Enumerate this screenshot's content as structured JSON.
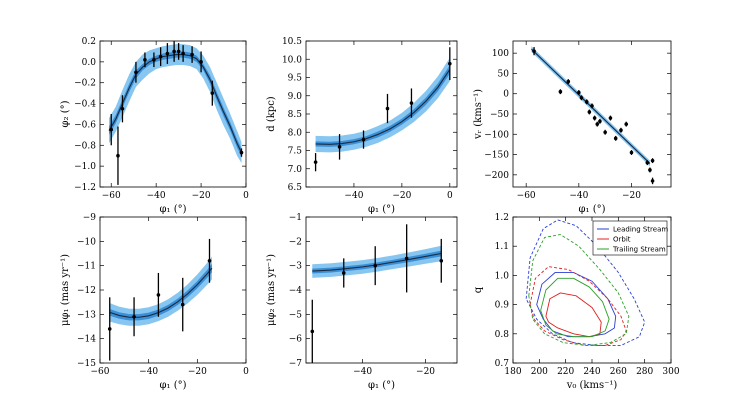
{
  "colors": {
    "band_outer": "#87c6f0",
    "band_inner": "#3a8fd6",
    "curve": "#1a2a40",
    "points": "#000000",
    "leading": "#2a3fd6",
    "orbit": "#e02020",
    "trailing": "#2aa02a"
  },
  "chart_data": [
    {
      "id": "phi2",
      "type": "line",
      "xlabel": "φ₁ (°)",
      "ylabel": "φ₂ (°)",
      "xlim": [
        -65,
        0
      ],
      "ylim": [
        -1.2,
        0.2
      ],
      "xticks": [
        -60,
        -40,
        -20,
        0
      ],
      "xtick_labels": [
        "−60",
        "−40",
        "−20",
        "0"
      ],
      "yticks": [
        -1.2,
        -1.0,
        -0.8,
        -0.6,
        -0.4,
        -0.2,
        0.0,
        0.2
      ],
      "ytick_labels": [
        "−1.2",
        "−1.0",
        "−0.8",
        "−0.6",
        "−0.4",
        "−0.2",
        "0.0",
        "0.2"
      ],
      "model": {
        "x": [
          -61,
          -58,
          -55,
          -52,
          -49,
          -46,
          -43,
          -40,
          -37,
          -34,
          -31,
          -28,
          -25,
          -22,
          -19,
          -16,
          -13,
          -10,
          -7,
          -4,
          -2
        ],
        "y": [
          -0.66,
          -0.55,
          -0.4,
          -0.25,
          -0.12,
          -0.05,
          0.0,
          0.03,
          0.05,
          0.06,
          0.07,
          0.07,
          0.06,
          0.03,
          -0.05,
          -0.17,
          -0.33,
          -0.48,
          -0.62,
          -0.78,
          -0.87
        ],
        "inner": [
          0.04,
          0.04,
          0.04,
          0.04,
          0.04,
          0.03,
          0.03,
          0.03,
          0.03,
          0.03,
          0.03,
          0.03,
          0.03,
          0.03,
          0.03,
          0.04,
          0.04,
          0.04,
          0.04,
          0.04,
          0.04
        ],
        "outer": [
          0.12,
          0.12,
          0.13,
          0.13,
          0.12,
          0.12,
          0.11,
          0.1,
          0.1,
          0.1,
          0.1,
          0.1,
          0.1,
          0.1,
          0.11,
          0.12,
          0.13,
          0.13,
          0.12,
          0.12,
          0.1
        ]
      },
      "points": {
        "x": [
          -60,
          -57,
          -55,
          -49,
          -45,
          -41,
          -38,
          -35,
          -32,
          -30,
          -28,
          -24,
          -20,
          -15,
          -2
        ],
        "y": [
          -0.65,
          -0.9,
          -0.45,
          -0.1,
          0.02,
          0.02,
          0.05,
          0.08,
          0.1,
          0.1,
          0.08,
          0.07,
          0.0,
          -0.3,
          -0.87
        ],
        "err": [
          0.15,
          0.28,
          0.13,
          0.1,
          0.07,
          0.07,
          0.09,
          0.1,
          0.1,
          0.08,
          0.08,
          0.08,
          0.1,
          0.12,
          0.04
        ]
      }
    },
    {
      "id": "dist",
      "type": "line",
      "xlabel": "φ₁ (°)",
      "ylabel": "d (kpc)",
      "xlim": [
        -60,
        3
      ],
      "ylim": [
        6.5,
        10.5
      ],
      "xticks": [
        -40,
        -20,
        0
      ],
      "xtick_labels": [
        "−40",
        "−20",
        "0"
      ],
      "yticks": [
        6.5,
        7.0,
        7.5,
        8.0,
        8.5,
        9.0,
        9.5,
        10.0,
        10.5
      ],
      "ytick_labels": [
        "6.5",
        "7.0",
        "7.5",
        "8.0",
        "8.5",
        "9.0",
        "9.5",
        "10.0",
        "10.5"
      ],
      "model": {
        "x": [
          -56,
          -50,
          -45,
          -40,
          -35,
          -30,
          -25,
          -20,
          -15,
          -10,
          -5,
          0
        ],
        "y": [
          7.68,
          7.67,
          7.69,
          7.74,
          7.82,
          7.94,
          8.09,
          8.29,
          8.54,
          8.85,
          9.23,
          9.72
        ],
        "inner": [
          0.07,
          0.07,
          0.07,
          0.07,
          0.07,
          0.08,
          0.08,
          0.08,
          0.09,
          0.1,
          0.11,
          0.12
        ],
        "outer": [
          0.22,
          0.22,
          0.22,
          0.22,
          0.22,
          0.23,
          0.23,
          0.24,
          0.26,
          0.28,
          0.3,
          0.32
        ]
      },
      "points": {
        "x": [
          -56,
          -46,
          -36,
          -26,
          -16,
          0
        ],
        "y": [
          7.18,
          7.6,
          7.8,
          8.65,
          8.8,
          9.88
        ],
        "err": [
          0.25,
          0.35,
          0.25,
          0.4,
          0.4,
          0.45
        ]
      }
    },
    {
      "id": "vr",
      "type": "scatter",
      "xlabel": "φ₁ (°)",
      "ylabel": "vᵣ (kms⁻¹)",
      "xlim": [
        -65,
        -5
      ],
      "ylim": [
        -230,
        130
      ],
      "xticks": [
        -60,
        -40,
        -20
      ],
      "xtick_labels": [
        "−60",
        "−40",
        "−20"
      ],
      "yticks": [
        -200,
        -150,
        -100,
        -50,
        0,
        50,
        100
      ],
      "ytick_labels": [
        "−200",
        "−150",
        "−100",
        "−50",
        "0",
        "50",
        "100"
      ],
      "model": {
        "x": [
          -58,
          -13
        ],
        "y": [
          110,
          -172
        ],
        "inner": [
          2,
          2
        ],
        "outer": [
          7,
          7
        ]
      },
      "points": {
        "x": [
          -57,
          -47,
          -44,
          -40,
          -39,
          -37,
          -36,
          -35,
          -34,
          -33,
          -32,
          -30,
          -28,
          -26,
          -24,
          -22,
          -20,
          -14,
          -13,
          -12,
          -12
        ],
        "y": [
          105,
          5,
          30,
          3,
          -10,
          -20,
          -45,
          -30,
          -60,
          -75,
          -68,
          -95,
          -60,
          -110,
          -90,
          -75,
          -145,
          -170,
          -188,
          -165,
          -215
        ],
        "err": [
          10,
          6,
          6,
          6,
          6,
          6,
          6,
          6,
          6,
          6,
          6,
          6,
          6,
          6,
          6,
          6,
          6,
          6,
          6,
          6,
          8
        ]
      }
    },
    {
      "id": "mu1",
      "type": "line",
      "xlabel": "φ₁ (°)",
      "ylabel": "μφ₁ (mas yr⁻¹)",
      "xlim": [
        -60,
        0
      ],
      "ylim": [
        -15,
        -9
      ],
      "xticks": [
        -60,
        -40,
        -20,
        0
      ],
      "xtick_labels": [
        "−60",
        "−40",
        "−20",
        "0"
      ],
      "yticks": [
        -15,
        -14,
        -13,
        -12,
        -11,
        -10,
        -9
      ],
      "ytick_labels": [
        "−15",
        "−14",
        "−13",
        "−12",
        "−11",
        "−10",
        "−9"
      ],
      "model": {
        "x": [
          -56,
          -52,
          -48,
          -44,
          -40,
          -36,
          -32,
          -28,
          -24,
          -20,
          -16,
          -14
        ],
        "y": [
          -12.92,
          -13.05,
          -13.12,
          -13.12,
          -13.06,
          -12.93,
          -12.74,
          -12.48,
          -12.16,
          -11.78,
          -11.34,
          -11.1
        ],
        "inner": [
          0.14,
          0.13,
          0.13,
          0.13,
          0.13,
          0.13,
          0.13,
          0.13,
          0.14,
          0.15,
          0.16,
          0.17
        ],
        "outer": [
          0.38,
          0.36,
          0.35,
          0.35,
          0.35,
          0.35,
          0.36,
          0.37,
          0.39,
          0.42,
          0.45,
          0.47
        ]
      },
      "points": {
        "x": [
          -56,
          -46,
          -36,
          -26,
          -15
        ],
        "y": [
          -13.6,
          -13.1,
          -12.2,
          -12.6,
          -10.8
        ],
        "err": [
          1.3,
          0.8,
          0.9,
          1.1,
          0.9
        ]
      }
    },
    {
      "id": "mu2",
      "type": "line",
      "xlabel": "φ₁ (°)",
      "ylabel": "μφ₂ (mas yr⁻¹)",
      "xlim": [
        -58,
        -10
      ],
      "ylim": [
        -7,
        -1
      ],
      "xticks": [
        -40,
        -20
      ],
      "xtick_labels": [
        "−40",
        "−20"
      ],
      "yticks": [
        -7,
        -6,
        -5,
        -4,
        -3,
        -2,
        -1
      ],
      "ytick_labels": [
        "−7",
        "−6",
        "−5",
        "−4",
        "−3",
        "−2",
        "−1"
      ],
      "model": {
        "x": [
          -56,
          -50,
          -45,
          -40,
          -35,
          -30,
          -25,
          -20,
          -15
        ],
        "y": [
          -3.22,
          -3.18,
          -3.12,
          -3.05,
          -2.96,
          -2.85,
          -2.74,
          -2.62,
          -2.5
        ],
        "inner": [
          0.1,
          0.1,
          0.1,
          0.1,
          0.1,
          0.1,
          0.11,
          0.11,
          0.12
        ],
        "outer": [
          0.28,
          0.28,
          0.28,
          0.28,
          0.28,
          0.28,
          0.29,
          0.3,
          0.32
        ]
      },
      "points": {
        "x": [
          -56,
          -46,
          -36,
          -26,
          -15
        ],
        "y": [
          -5.7,
          -3.3,
          -3.0,
          -2.7,
          -2.8
        ],
        "err": [
          1.3,
          0.6,
          0.8,
          1.4,
          0.9
        ]
      }
    },
    {
      "id": "contour",
      "type": "line",
      "xlabel": "v₀ (kms⁻¹)",
      "ylabel": "q",
      "xlim": [
        180,
        300
      ],
      "ylim": [
        0.7,
        1.2
      ],
      "xticks": [
        180,
        200,
        220,
        240,
        260,
        280,
        300
      ],
      "xtick_labels": [
        "180",
        "200",
        "220",
        "240",
        "260",
        "280",
        "300"
      ],
      "yticks": [
        0.7,
        0.8,
        0.9,
        1.0,
        1.1,
        1.2
      ],
      "ytick_labels": [
        "0.7",
        "0.8",
        "0.9",
        "1.0",
        "1.1",
        "1.2"
      ],
      "legend": [
        "Leading Stream",
        "Orbit",
        "Trailing Stream"
      ],
      "legend_position": "top-right",
      "contours": [
        {
          "name": "Leading Stream",
          "level": 1,
          "style": "solid",
          "v0": [
            198,
            202,
            212,
            226,
            240,
            252,
            258,
            257,
            250,
            238,
            222,
            210,
            203,
            198
          ],
          "q": [
            0.9,
            0.97,
            1.01,
            1.01,
            0.98,
            0.92,
            0.86,
            0.82,
            0.8,
            0.79,
            0.79,
            0.81,
            0.85,
            0.9
          ]
        },
        {
          "name": "Leading Stream",
          "level": 2,
          "style": "dashed",
          "v0": [
            190,
            193,
            203,
            214,
            228,
            244,
            260,
            272,
            280,
            276,
            262,
            244,
            225,
            210,
            198,
            190
          ],
          "q": [
            0.92,
            1.06,
            1.16,
            1.19,
            1.17,
            1.1,
            1.01,
            0.92,
            0.84,
            0.79,
            0.76,
            0.76,
            0.77,
            0.8,
            0.85,
            0.92
          ]
        },
        {
          "name": "Orbit",
          "level": 1,
          "style": "solid",
          "v0": [
            205,
            208,
            216,
            228,
            240,
            247,
            246,
            238,
            226,
            214,
            207,
            205
          ],
          "q": [
            0.86,
            0.92,
            0.94,
            0.93,
            0.89,
            0.84,
            0.8,
            0.79,
            0.8,
            0.82,
            0.84,
            0.86
          ]
        },
        {
          "name": "Orbit",
          "level": 2,
          "style": "dashed",
          "v0": [
            193,
            197,
            207,
            222,
            238,
            252,
            262,
            266,
            262,
            250,
            234,
            218,
            204,
            196,
            193
          ],
          "q": [
            0.9,
            0.99,
            1.03,
            1.02,
            0.98,
            0.92,
            0.86,
            0.81,
            0.78,
            0.76,
            0.76,
            0.78,
            0.81,
            0.85,
            0.9
          ]
        },
        {
          "name": "Trailing Stream",
          "level": 1,
          "style": "solid",
          "v0": [
            201,
            205,
            214,
            226,
            238,
            248,
            253,
            250,
            240,
            226,
            213,
            205,
            201
          ],
          "q": [
            0.88,
            0.95,
            0.99,
            0.99,
            0.96,
            0.91,
            0.85,
            0.81,
            0.79,
            0.79,
            0.8,
            0.83,
            0.88
          ]
        },
        {
          "name": "Trailing Stream",
          "level": 2,
          "style": "dashed",
          "v0": [
            192,
            195,
            204,
            216,
            230,
            246,
            260,
            268,
            266,
            254,
            236,
            218,
            204,
            195,
            192
          ],
          "q": [
            0.93,
            1.05,
            1.13,
            1.14,
            1.1,
            1.02,
            0.94,
            0.86,
            0.8,
            0.77,
            0.76,
            0.77,
            0.8,
            0.85,
            0.93
          ]
        }
      ]
    }
  ]
}
